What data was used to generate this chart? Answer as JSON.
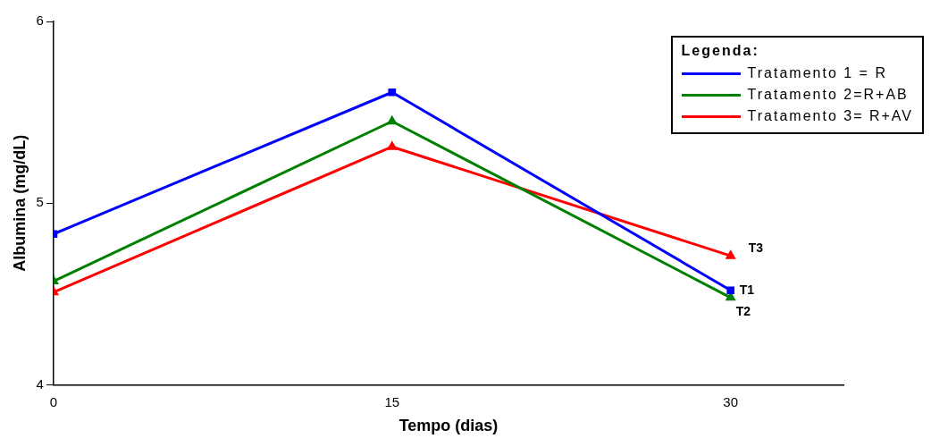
{
  "chart_data": {
    "type": "line",
    "xlabel": "Tempo (dias)",
    "ylabel": "Albumina (mg/dL)",
    "legend_title": "Legenda:",
    "legend": "top right",
    "grid": false,
    "x": [
      0,
      15,
      30
    ],
    "xlim": [
      0,
      35
    ],
    "xticks": [
      0,
      15,
      30
    ],
    "ylim": [
      4,
      6
    ],
    "yticks": [
      4,
      5,
      6
    ],
    "series": [
      {
        "name": "Tratamento 1 = R",
        "color": "#0000ff",
        "marker": "square",
        "values": [
          4.83,
          5.61,
          4.52
        ]
      },
      {
        "name": "Tratamento 2=R+AB",
        "color": "#008000",
        "marker": "triangle",
        "values": [
          4.57,
          5.45,
          4.48
        ]
      },
      {
        "name": "Tratamento 3= R+AV",
        "color": "#ff0000",
        "marker": "triangle",
        "values": [
          4.51,
          5.31,
          4.71
        ]
      }
    ],
    "annotations": [
      "T1",
      "T2",
      "T3"
    ]
  }
}
